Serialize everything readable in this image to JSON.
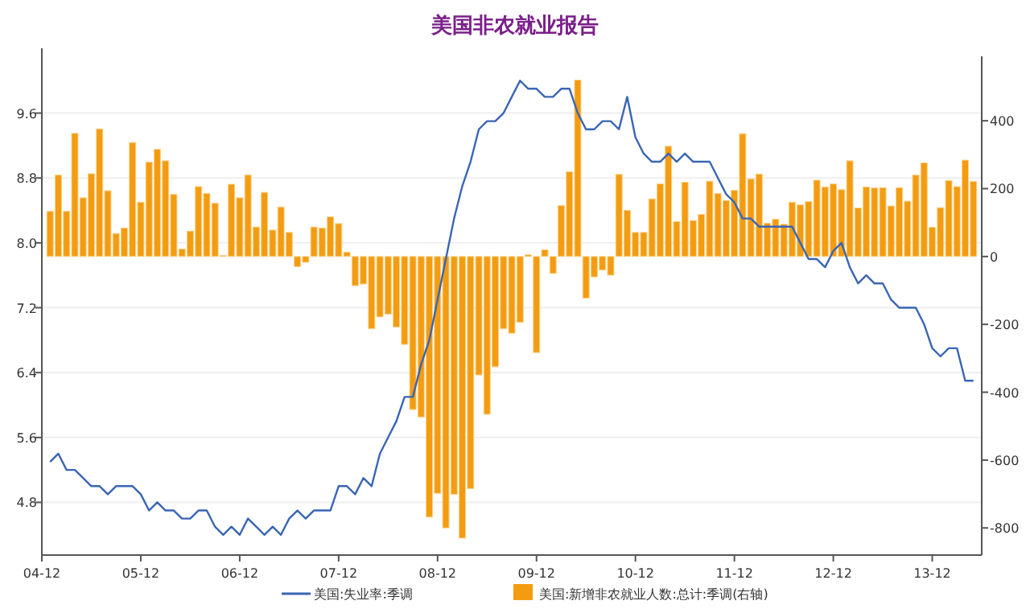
{
  "chart_data": {
    "type": "bar",
    "title": "美国非农就业报告",
    "x": [
      "2005-01",
      "2005-02",
      "2005-03",
      "2005-04",
      "2005-05",
      "2005-06",
      "2005-07",
      "2005-08",
      "2005-09",
      "2005-10",
      "2005-11",
      "2005-12",
      "2006-01",
      "2006-02",
      "2006-03",
      "2006-04",
      "2006-05",
      "2006-06",
      "2006-07",
      "2006-08",
      "2006-09",
      "2006-10",
      "2006-11",
      "2006-12",
      "2007-01",
      "2007-02",
      "2007-03",
      "2007-04",
      "2007-05",
      "2007-06",
      "2007-07",
      "2007-08",
      "2007-09",
      "2007-10",
      "2007-11",
      "2007-12",
      "2008-01",
      "2008-02",
      "2008-03",
      "2008-04",
      "2008-05",
      "2008-06",
      "2008-07",
      "2008-08",
      "2008-09",
      "2008-10",
      "2008-11",
      "2008-12",
      "2009-01",
      "2009-02",
      "2009-03",
      "2009-04",
      "2009-05",
      "2009-06",
      "2009-07",
      "2009-08",
      "2009-09",
      "2009-10",
      "2009-11",
      "2009-12",
      "2010-01",
      "2010-02",
      "2010-03",
      "2010-04",
      "2010-05",
      "2010-06",
      "2010-07",
      "2010-08",
      "2010-09",
      "2010-10",
      "2010-11",
      "2010-12",
      "2011-01",
      "2011-02",
      "2011-03",
      "2011-04",
      "2011-05",
      "2011-06",
      "2011-07",
      "2011-08",
      "2011-09",
      "2011-10",
      "2011-11",
      "2011-12",
      "2012-01",
      "2012-02",
      "2012-03",
      "2012-04",
      "2012-05",
      "2012-06",
      "2012-07",
      "2012-08",
      "2012-09",
      "2012-10",
      "2012-11",
      "2012-12",
      "2013-01",
      "2013-02",
      "2013-03",
      "2013-04",
      "2013-05",
      "2013-06",
      "2013-07",
      "2013-08",
      "2013-09",
      "2013-10",
      "2013-11",
      "2013-12",
      "2014-01",
      "2014-02",
      "2014-03",
      "2014-04",
      "2014-05"
    ],
    "xlim": [
      "2004-12",
      "2014-06"
    ],
    "xticks": [
      {
        "value": "2004-12",
        "label": "04-12"
      },
      {
        "value": "2005-12",
        "label": "05-12"
      },
      {
        "value": "2006-12",
        "label": "06-12"
      },
      {
        "value": "2007-12",
        "label": "07-12"
      },
      {
        "value": "2008-12",
        "label": "08-12"
      },
      {
        "value": "2009-12",
        "label": "09-12"
      },
      {
        "value": "2010-12",
        "label": "10-12"
      },
      {
        "value": "2011-12",
        "label": "11-12"
      },
      {
        "value": "2012-12",
        "label": "12-12"
      },
      {
        "value": "2013-12",
        "label": "13-12"
      }
    ],
    "ylim": [
      4.15,
      10.3
    ],
    "yticks": [
      {
        "value": 4.8,
        "label": "4.8"
      },
      {
        "value": 5.6,
        "label": "5.6"
      },
      {
        "value": 6.4,
        "label": "6.4"
      },
      {
        "value": 7.2,
        "label": "7.2"
      },
      {
        "value": 8.0,
        "label": "8.0"
      },
      {
        "value": 8.8,
        "label": "8.8"
      },
      {
        "value": 9.6,
        "label": "9.6"
      }
    ],
    "y2lim": [
      -880,
      590
    ],
    "y2ticks": [
      -800,
      -600,
      -400,
      -200,
      0,
      200,
      400
    ],
    "grid": "y",
    "legend": "bottom",
    "series": [
      {
        "name": "美国:新增非农就业人数:总计:季调(右轴)",
        "axis": "y2",
        "color": "#f39c12",
        "values": [
          133,
          240,
          133,
          363,
          173,
          244,
          376,
          194,
          68,
          84,
          336,
          160,
          278,
          316,
          282,
          183,
          22,
          75,
          206,
          186,
          157,
          3,
          213,
          173,
          240,
          87,
          189,
          78,
          146,
          71,
          -30,
          -17,
          87,
          84,
          117,
          97,
          13,
          -86,
          -81,
          -213,
          -178,
          -170,
          -208,
          -259,
          -451,
          -473,
          -768,
          -698,
          -800,
          -701,
          -830,
          -684,
          -349,
          -465,
          -325,
          -213,
          -226,
          -194,
          5,
          -283,
          20,
          -50,
          150,
          250,
          520,
          -123,
          -60,
          -40,
          -55,
          242,
          136,
          71,
          71,
          170,
          214,
          325,
          103,
          219,
          106,
          124,
          222,
          186,
          165,
          195,
          362,
          229,
          243,
          98,
          110,
          95,
          160,
          152,
          162,
          225,
          205,
          214,
          197,
          282,
          143,
          205,
          202,
          203,
          149,
          203,
          163,
          240,
          276,
          86,
          144,
          224,
          206,
          284,
          221
        ]
      },
      {
        "name": "美国:失业率:季调",
        "type": "line",
        "axis": "y",
        "color": "#3a65b5",
        "values": [
          5.3,
          5.4,
          5.2,
          5.2,
          5.1,
          5.0,
          5.0,
          4.9,
          5.0,
          5.0,
          5.0,
          4.9,
          4.7,
          4.8,
          4.7,
          4.7,
          4.6,
          4.6,
          4.7,
          4.7,
          4.5,
          4.4,
          4.5,
          4.4,
          4.6,
          4.5,
          4.4,
          4.5,
          4.4,
          4.6,
          4.7,
          4.6,
          4.7,
          4.7,
          4.7,
          5.0,
          5.0,
          4.9,
          5.1,
          5.0,
          5.4,
          5.6,
          5.8,
          6.1,
          6.1,
          6.5,
          6.8,
          7.3,
          7.8,
          8.3,
          8.7,
          9.0,
          9.4,
          9.5,
          9.5,
          9.6,
          9.8,
          10.0,
          9.9,
          9.9,
          9.8,
          9.8,
          9.9,
          9.9,
          9.6,
          9.4,
          9.4,
          9.5,
          9.5,
          9.4,
          9.8,
          9.3,
          9.1,
          9.0,
          9.0,
          9.1,
          9.0,
          9.1,
          9.0,
          9.0,
          9.0,
          8.8,
          8.6,
          8.5,
          8.3,
          8.3,
          8.2,
          8.2,
          8.2,
          8.2,
          8.2,
          8.0,
          7.8,
          7.8,
          7.7,
          7.9,
          8.0,
          7.7,
          7.5,
          7.6,
          7.5,
          7.5,
          7.3,
          7.2,
          7.2,
          7.2,
          7.0,
          6.7,
          6.6,
          6.7,
          6.7,
          6.3,
          6.3
        ]
      }
    ]
  }
}
